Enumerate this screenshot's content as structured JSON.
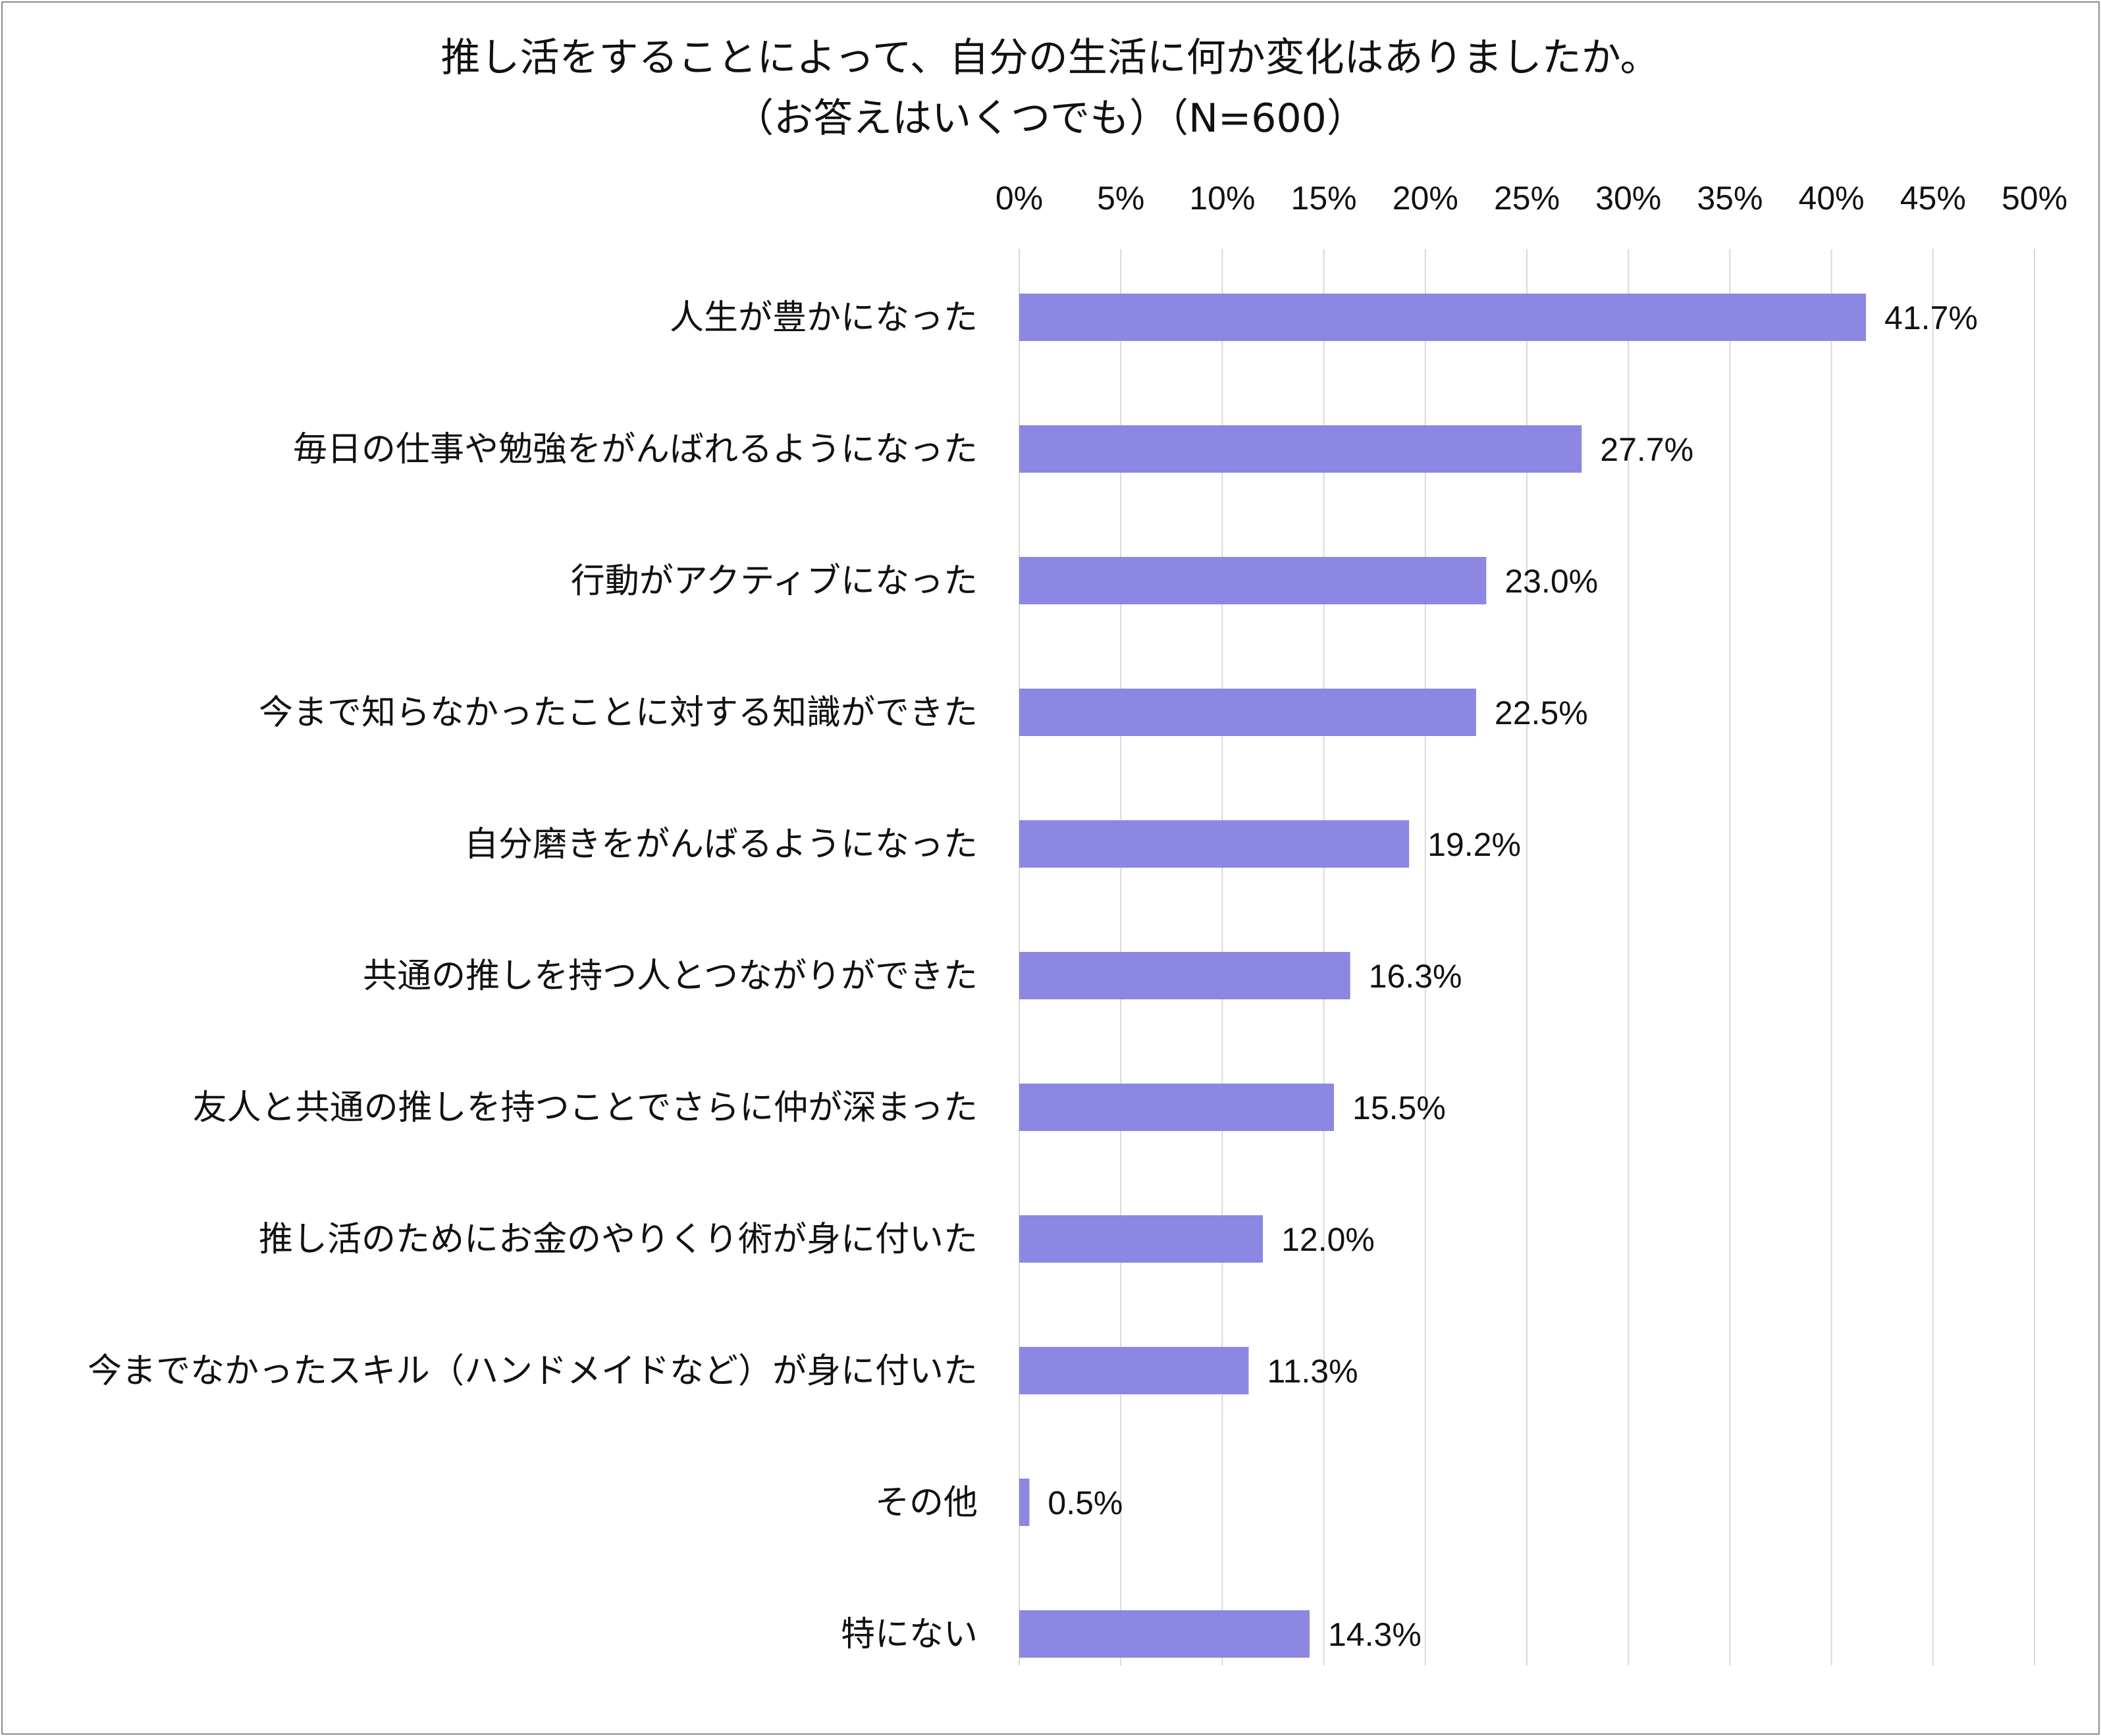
{
  "chart_data": {
    "type": "bar",
    "orientation": "horizontal",
    "title": "推し活をすることによって、自分の生活に何か変化はありましたか。",
    "subtitle": "（お答えはいくつでも）（N=600）",
    "xlabel": "",
    "ylabel": "",
    "xlim": [
      0,
      50
    ],
    "x_ticks": [
      "0%",
      "5%",
      "10%",
      "15%",
      "20%",
      "25%",
      "30%",
      "35%",
      "40%",
      "45%",
      "50%"
    ],
    "x_axis_position": "top",
    "grid": true,
    "legend": "none",
    "bar_color": "#8b87e3",
    "grid_color": "#d9d9d9",
    "categories": [
      "人生が豊かになった",
      "毎日の仕事や勉強をがんばれるようになった",
      "行動がアクティブになった",
      "今まで知らなかったことに対する知識ができた",
      "自分磨きをがんばるようになった",
      "共通の推しを持つ人とつながりができた",
      "友人と共通の推しを持つことでさらに仲が深まった",
      "推し活のためにお金のやりくり術が身に付いた",
      "今までなかったスキル（ハンドメイドなど）が身に付いた",
      "その他",
      "特にない"
    ],
    "values": [
      41.7,
      27.7,
      23.0,
      22.5,
      19.2,
      16.3,
      15.5,
      12.0,
      11.3,
      0.5,
      14.3
    ],
    "data_labels": [
      "41.7%",
      "27.7%",
      "23.0%",
      "22.5%",
      "19.2%",
      "16.3%",
      "15.5%",
      "12.0%",
      "11.3%",
      "0.5%",
      "14.3%"
    ]
  }
}
